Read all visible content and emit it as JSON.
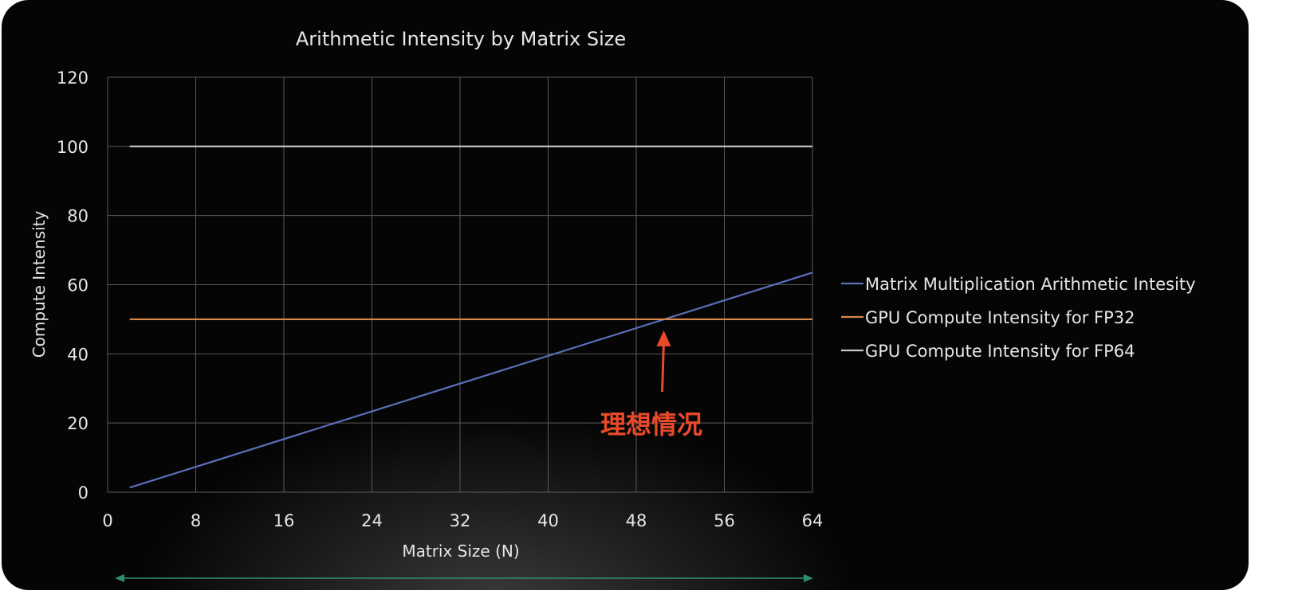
{
  "chart_data": {
    "type": "line",
    "title": "Arithmetic Intensity by Matrix Size",
    "xlabel": "Matrix Size (N)",
    "ylabel": "Compute Intensity",
    "xlim": [
      0,
      64
    ],
    "ylim": [
      0,
      120
    ],
    "x_ticks": [
      0,
      8,
      16,
      24,
      32,
      40,
      48,
      56,
      64
    ],
    "y_ticks": [
      0,
      20,
      40,
      60,
      80,
      100,
      120
    ],
    "grid": true,
    "legend_position": "right",
    "series": [
      {
        "name": "Matrix Multiplication Arithmetic Intesity",
        "color": "#5b6fb8",
        "x": [
          2,
          64
        ],
        "y": [
          1.3,
          63.5
        ]
      },
      {
        "name": "GPU Compute Intensity for FP32",
        "color": "#d8874a",
        "x": [
          2,
          64
        ],
        "y": [
          50,
          50
        ]
      },
      {
        "name": "GPU Compute Intensity for FP64",
        "color": "#c8c8c8",
        "x": [
          2,
          64
        ],
        "y": [
          100,
          100
        ]
      }
    ],
    "annotation": {
      "text": "理想情况",
      "color": "#e84a2a",
      "point": {
        "x": 50.5,
        "y": 50
      }
    }
  }
}
